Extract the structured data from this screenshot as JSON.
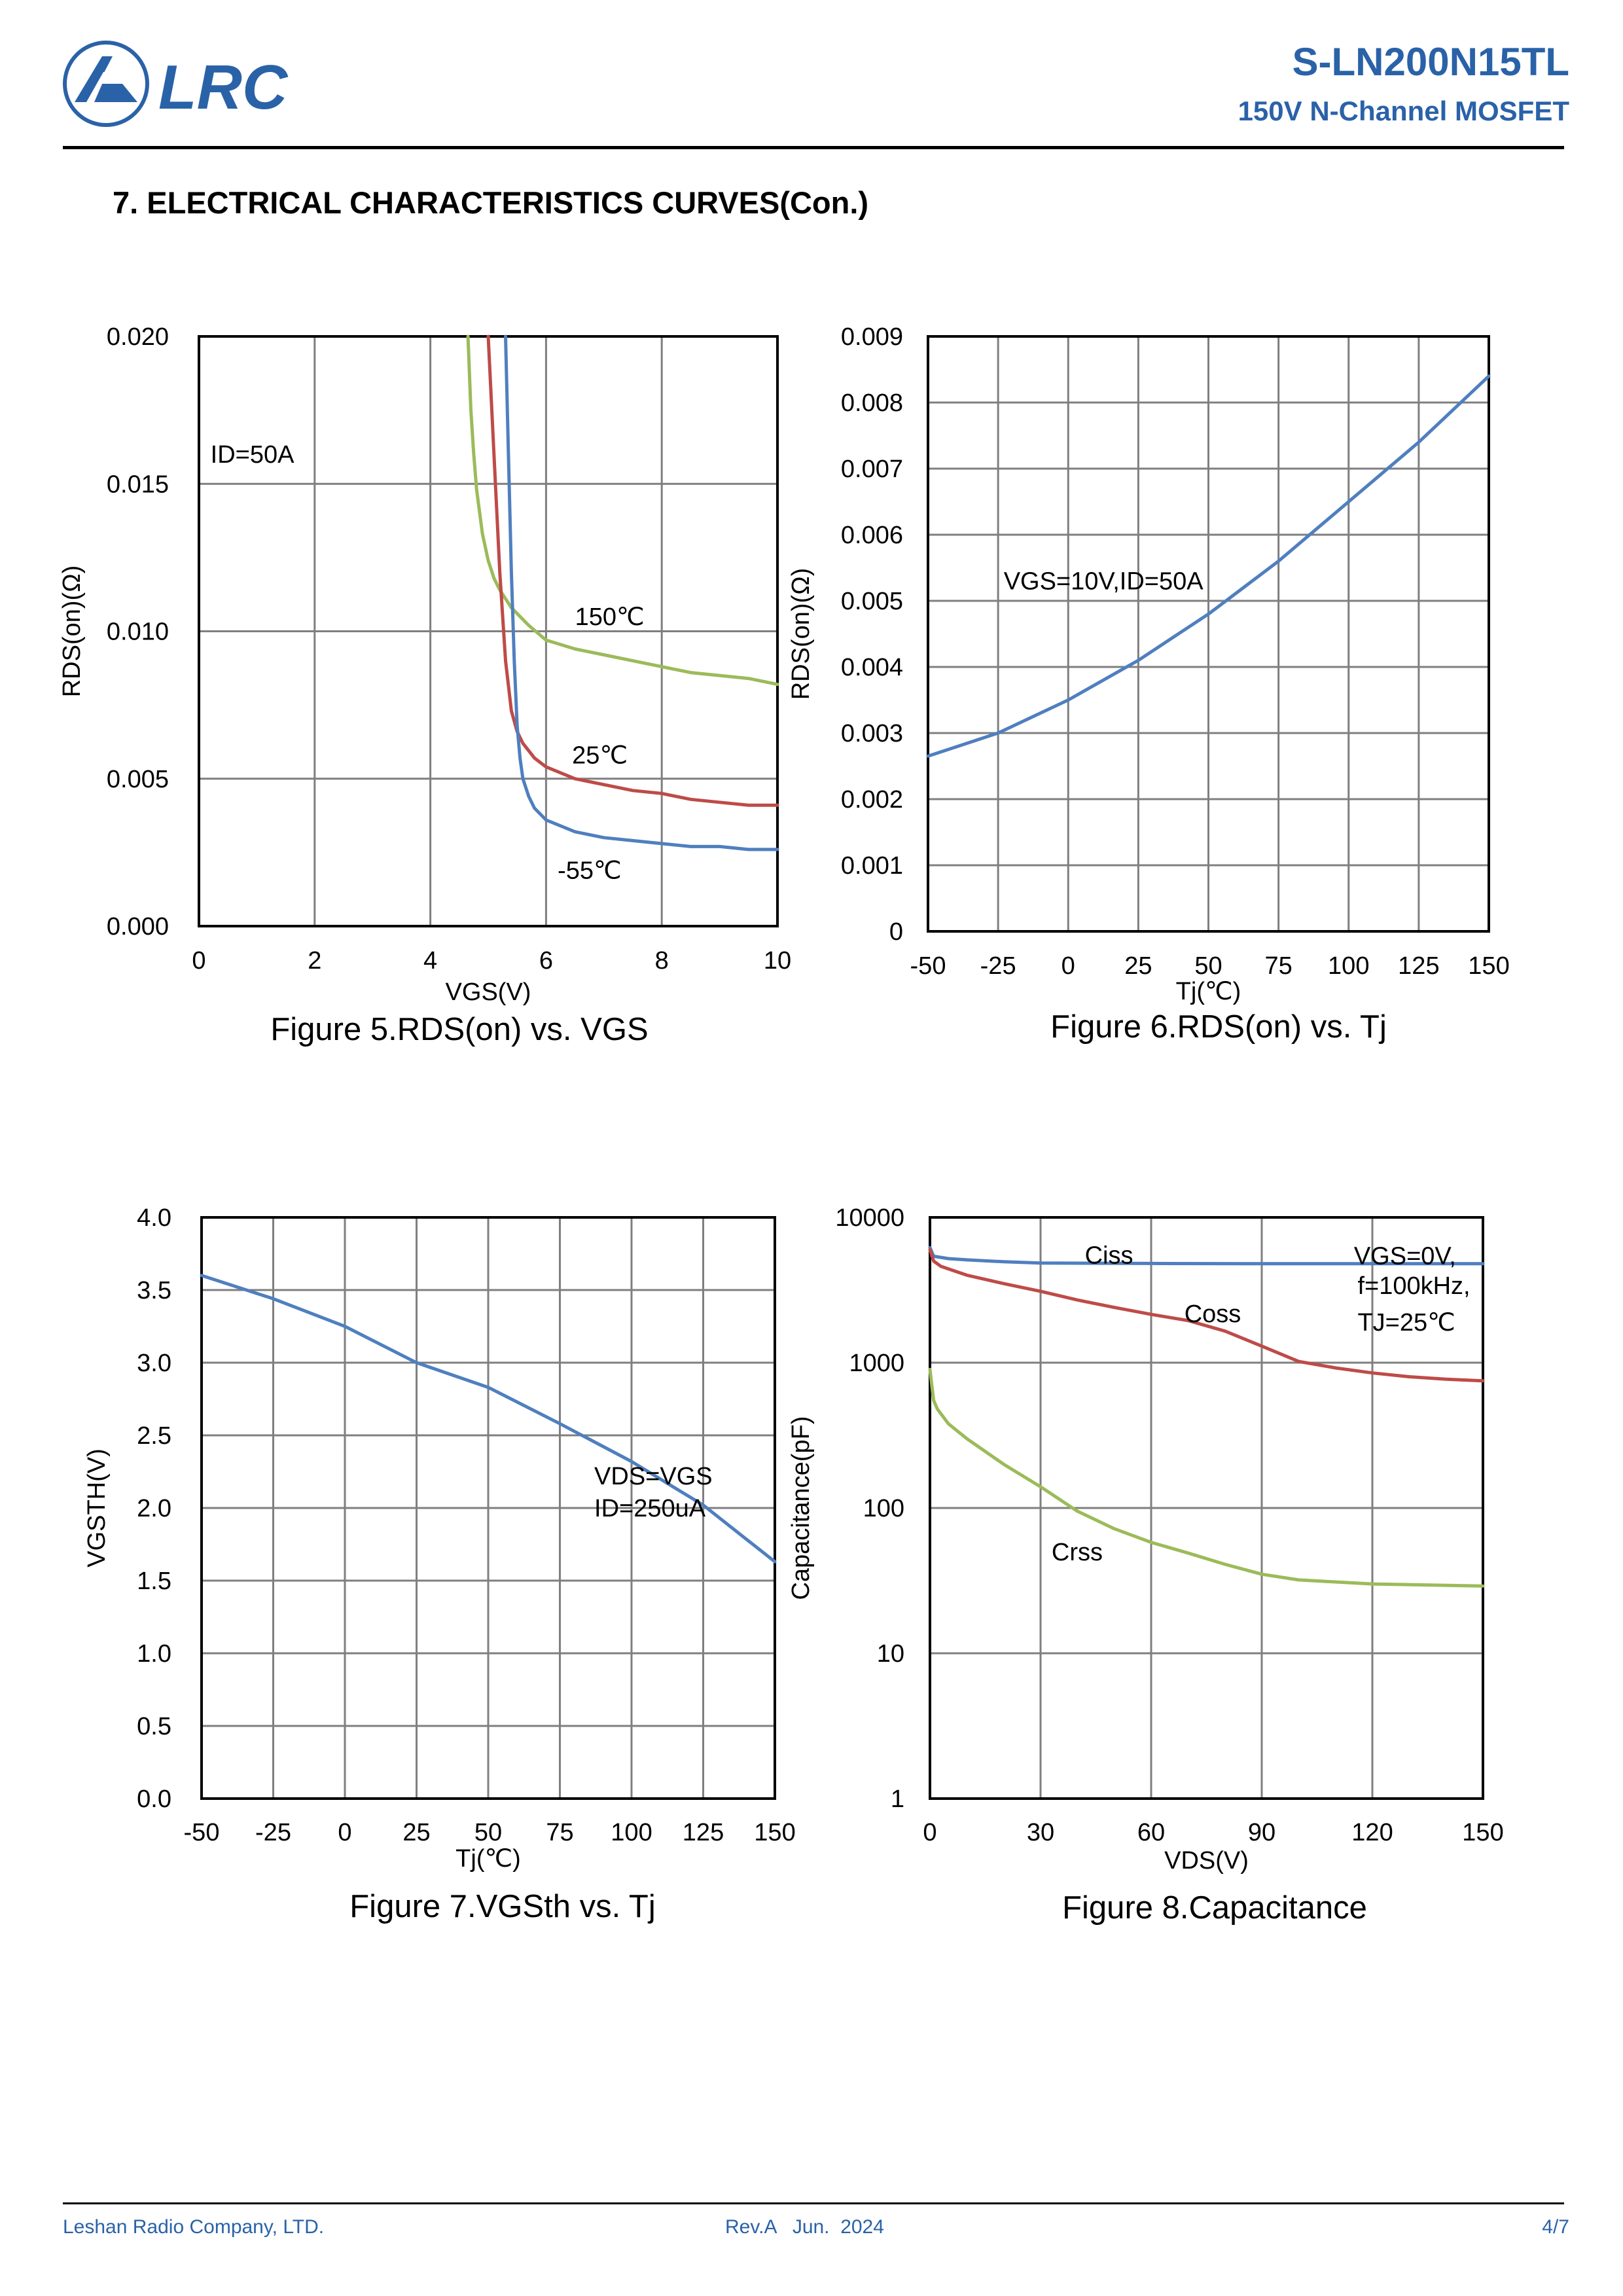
{
  "header": {
    "brand": "LRC",
    "part_number": "S-LN200N15TL",
    "subtitle": "150V N-Channel MOSFET"
  },
  "section_title": "7. ELECTRICAL CHARACTERISTICS CURVES(Con.)",
  "footer": {
    "company": "Leshan Radio Company, LTD.",
    "revision": "Rev.A   Jun.  2024",
    "page": "4/7"
  },
  "colors": {
    "brand_blue": "#2a62a8",
    "blue": "#4f7fbf",
    "red": "#be4b48",
    "green": "#9bbb59",
    "grid": "#7f7f7f"
  },
  "chart_data": [
    {
      "id": "fig5",
      "type": "line",
      "caption": "Figure 5.RDS(on) vs. VGS",
      "xlabel": "VGS(V)",
      "ylabel": "RDS(on)(Ω)",
      "xlim": [
        0,
        10
      ],
      "ylim": [
        0,
        0.02
      ],
      "x_ticks": [
        0,
        2,
        4,
        6,
        8,
        10
      ],
      "x_tick_labels": [
        "0",
        "2",
        "4",
        "6",
        "8",
        "10"
      ],
      "y_ticks": [
        0,
        0.005,
        0.01,
        0.015,
        0.02
      ],
      "y_tick_labels": [
        "0.000",
        "0.005",
        "0.010",
        "0.015",
        "0.020"
      ],
      "grid": true,
      "annotations": [
        {
          "text": "ID=50A",
          "x": 0.2,
          "y": 0.016
        },
        {
          "text": "150℃",
          "x": 6.5,
          "y": 0.0105
        },
        {
          "text": "25℃",
          "x": 6.45,
          "y": 0.0058
        },
        {
          "text": "-55℃",
          "x": 6.2,
          "y": 0.0019
        }
      ],
      "series": [
        {
          "name": "150℃",
          "color": "green",
          "x": [
            4.65,
            4.7,
            4.75,
            4.8,
            4.9,
            5.0,
            5.1,
            5.2,
            5.4,
            5.7,
            6.0,
            6.5,
            7.0,
            7.5,
            8.0,
            8.5,
            9.0,
            9.5,
            10.0
          ],
          "y": [
            0.02,
            0.0175,
            0.016,
            0.0148,
            0.0133,
            0.0124,
            0.0118,
            0.0114,
            0.0108,
            0.0102,
            0.0097,
            0.0094,
            0.0092,
            0.009,
            0.0088,
            0.0086,
            0.0085,
            0.0084,
            0.0082
          ]
        },
        {
          "name": "25℃",
          "color": "red",
          "x": [
            5.0,
            5.1,
            5.2,
            5.3,
            5.4,
            5.5,
            5.6,
            5.8,
            6.0,
            6.5,
            7.0,
            7.5,
            8.0,
            8.5,
            9.0,
            9.5,
            10.0
          ],
          "y": [
            0.02,
            0.016,
            0.012,
            0.009,
            0.0073,
            0.0066,
            0.0062,
            0.0057,
            0.0054,
            0.005,
            0.0048,
            0.0046,
            0.0045,
            0.0043,
            0.0042,
            0.0041,
            0.0041
          ]
        },
        {
          "name": "-55℃",
          "color": "blue",
          "x": [
            5.3,
            5.35,
            5.4,
            5.45,
            5.5,
            5.55,
            5.6,
            5.7,
            5.8,
            6.0,
            6.5,
            7.0,
            7.5,
            8.0,
            8.5,
            9.0,
            9.5,
            10.0
          ],
          "y": [
            0.02,
            0.016,
            0.012,
            0.009,
            0.0068,
            0.0057,
            0.005,
            0.0044,
            0.004,
            0.0036,
            0.0032,
            0.003,
            0.0029,
            0.0028,
            0.0027,
            0.0027,
            0.0026,
            0.0026
          ]
        }
      ]
    },
    {
      "id": "fig6",
      "type": "line",
      "caption": "Figure 6.RDS(on) vs. Tj",
      "xlabel": "Tj(℃)",
      "ylabel": "RDS(on)(Ω)",
      "xlim": [
        -50,
        150
      ],
      "ylim": [
        0,
        0.009
      ],
      "x_ticks": [
        -50,
        -25,
        0,
        25,
        50,
        75,
        100,
        125,
        150
      ],
      "x_tick_labels": [
        "-50",
        "-25",
        "0",
        "25",
        "50",
        "75",
        "100",
        "125",
        "150"
      ],
      "y_ticks": [
        0,
        0.001,
        0.002,
        0.003,
        0.004,
        0.005,
        0.006,
        0.007,
        0.008,
        0.009
      ],
      "y_tick_labels": [
        "0",
        "0.001",
        "0.002",
        "0.003",
        "0.004",
        "0.005",
        "0.006",
        "0.007",
        "0.008",
        "0.009"
      ],
      "grid": true,
      "annotations": [
        {
          "text": "VGS=10V,ID=50A",
          "x": -23,
          "y": 0.0053
        }
      ],
      "series": [
        {
          "name": "",
          "color": "blue",
          "x": [
            -50,
            -25,
            0,
            25,
            50,
            75,
            100,
            125,
            150
          ],
          "y": [
            0.00265,
            0.003,
            0.0035,
            0.0041,
            0.0048,
            0.0056,
            0.0065,
            0.0074,
            0.0084
          ]
        }
      ]
    },
    {
      "id": "fig7",
      "type": "line",
      "caption": "Figure 7.VGSth vs. Tj",
      "xlabel": "Tj(℃)",
      "ylabel": "VGSTH(V)",
      "xlim": [
        -50,
        150
      ],
      "ylim": [
        0,
        4
      ],
      "x_ticks": [
        -50,
        -25,
        0,
        25,
        50,
        75,
        100,
        125,
        150
      ],
      "x_tick_labels": [
        "-50",
        "-25",
        "0",
        "25",
        "50",
        "75",
        "100",
        "125",
        "150"
      ],
      "y_ticks": [
        0,
        0.5,
        1.0,
        1.5,
        2.0,
        2.5,
        3.0,
        3.5,
        4.0
      ],
      "y_tick_labels": [
        "0.0",
        "0.5",
        "1.0",
        "1.5",
        "2.0",
        "2.5",
        "3.0",
        "3.5",
        "4.0"
      ],
      "grid": true,
      "annotations": [
        {
          "text": "VDS=VGS",
          "x": 87,
          "y": 2.22
        },
        {
          "text": "ID=250uA",
          "x": 87,
          "y": 2.0
        }
      ],
      "series": [
        {
          "name": "",
          "color": "blue",
          "x": [
            -50,
            -25,
            0,
            25,
            50,
            75,
            100,
            125,
            150
          ],
          "y": [
            3.6,
            3.44,
            3.25,
            3.0,
            2.83,
            2.58,
            2.32,
            2.02,
            1.63
          ]
        }
      ]
    },
    {
      "id": "fig8",
      "type": "line",
      "caption": "Figure 8.Capacitance",
      "xlabel": "VDS(V)",
      "ylabel": "Capacitance(pF)",
      "xlim": [
        0,
        150
      ],
      "ylim": [
        1,
        10000
      ],
      "yscale": "log",
      "x_ticks": [
        0,
        30,
        60,
        90,
        120,
        150
      ],
      "x_tick_labels": [
        "0",
        "30",
        "60",
        "90",
        "120",
        "150"
      ],
      "y_ticks": [
        1,
        10,
        100,
        1000,
        10000
      ],
      "y_tick_labels": [
        "1",
        "10",
        "100",
        "1000",
        "10000"
      ],
      "grid": true,
      "annotations": [
        {
          "text": "Ciss",
          "x": 42,
          "y": 5500
        },
        {
          "text": "Coss",
          "x": 69,
          "y": 2180
        },
        {
          "text": "Crss",
          "x": 33,
          "y": 50
        },
        {
          "text": "VGS=0V,",
          "x": 115,
          "y": 5450
        },
        {
          "text": "f=100kHz,",
          "x": 116,
          "y": 3400
        },
        {
          "text": "TJ=25℃",
          "x": 116,
          "y": 1900
        }
      ],
      "series": [
        {
          "name": "Ciss",
          "color": "blue",
          "x": [
            0,
            1,
            5,
            10,
            20,
            30,
            60,
            90,
            120,
            150
          ],
          "y": [
            6200,
            5400,
            5200,
            5100,
            4950,
            4850,
            4820,
            4800,
            4800,
            4800
          ]
        },
        {
          "name": "Coss",
          "color": "red",
          "x": [
            0,
            1,
            3,
            10,
            20,
            30,
            40,
            50,
            60,
            70,
            80,
            90,
            100,
            110,
            120,
            130,
            140,
            150
          ],
          "y": [
            6000,
            5000,
            4600,
            4000,
            3500,
            3100,
            2700,
            2400,
            2150,
            1950,
            1650,
            1300,
            1020,
            920,
            850,
            800,
            770,
            750
          ]
        },
        {
          "name": "Crss",
          "color": "green",
          "x": [
            0,
            0.5,
            1,
            2,
            5,
            10,
            20,
            30,
            40,
            50,
            60,
            70,
            80,
            90,
            100,
            120,
            150
          ],
          "y": [
            900,
            700,
            550,
            480,
            380,
            300,
            200,
            140,
            95,
            72,
            58,
            49,
            41,
            35,
            32,
            30,
            29
          ]
        }
      ]
    }
  ]
}
